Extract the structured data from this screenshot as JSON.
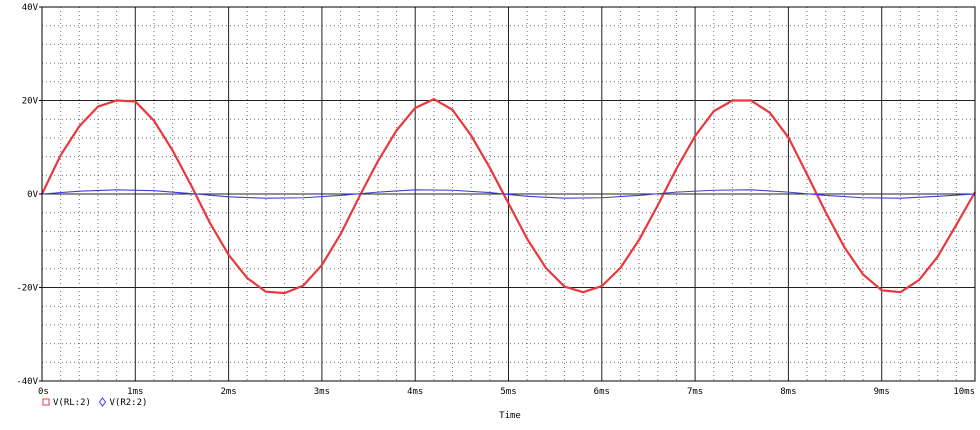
{
  "chart_data": {
    "type": "line",
    "xlabel": "Time",
    "ylabel": "",
    "xlim": [
      0,
      10
    ],
    "ylim": [
      -40,
      40
    ],
    "x_ticks": [
      0,
      1,
      2,
      3,
      4,
      5,
      6,
      7,
      8,
      9,
      10
    ],
    "x_tick_labels": [
      "0s",
      "1ms",
      "2ms",
      "3ms",
      "4ms",
      "5ms",
      "6ms",
      "7ms",
      "8ms",
      "9ms",
      "10ms"
    ],
    "y_ticks": [
      40,
      20,
      0,
      -20,
      -40
    ],
    "y_tick_labels": [
      "40V",
      "20V",
      "0V",
      "-20V",
      "-40V"
    ],
    "grid": true,
    "legend_position": "bottom-left",
    "series": [
      {
        "name": "V(RL:2)",
        "color": "#e8383d",
        "marker": "square",
        "x": [
          0,
          0.2,
          0.4,
          0.6,
          0.8,
          1.0,
          1.2,
          1.4,
          1.6,
          1.8,
          2.0,
          2.2,
          2.4,
          2.6,
          2.8,
          3.0,
          3.2,
          3.4,
          3.6,
          3.8,
          4.0,
          4.2,
          4.4,
          4.6,
          4.8,
          5.0,
          5.2,
          5.4,
          5.6,
          5.8,
          6.0,
          6.2,
          6.4,
          6.6,
          6.8,
          7.0,
          7.2,
          7.4,
          7.6,
          7.8,
          8.0,
          8.2,
          8.4,
          8.6,
          8.8,
          9.0,
          9.2,
          9.4,
          9.6,
          9.8,
          10.0
        ],
        "values": [
          0,
          8.3,
          14.5,
          18.7,
          20.0,
          19.8,
          15.7,
          9.3,
          1.8,
          -6.2,
          -13.0,
          -18.0,
          -20.9,
          -21.2,
          -19.6,
          -15.2,
          -8.6,
          -0.6,
          7.0,
          13.6,
          18.4,
          20.3,
          18.0,
          12.5,
          5.6,
          -2.0,
          -9.6,
          -15.8,
          -19.8,
          -21.0,
          -19.7,
          -15.8,
          -9.8,
          -2.4,
          5.4,
          12.4,
          17.7,
          20.0,
          20.0,
          17.4,
          12.1,
          4.2,
          -3.9,
          -11.4,
          -17.2,
          -20.6,
          -21.0,
          -18.4,
          -13.4,
          -6.6,
          0.4
        ]
      },
      {
        "name": "V(R2:2)",
        "color": "#4040d0",
        "marker": "diamond",
        "x": [
          0,
          0.4,
          0.8,
          1.2,
          1.6,
          2.0,
          2.4,
          2.8,
          3.2,
          3.6,
          4.0,
          4.4,
          4.8,
          5.2,
          5.6,
          6.0,
          6.4,
          6.8,
          7.2,
          7.6,
          8.0,
          8.4,
          8.8,
          9.2,
          9.6,
          10.0
        ],
        "values": [
          0,
          0.6,
          0.9,
          0.7,
          0.1,
          -0.6,
          -0.9,
          -0.8,
          -0.3,
          0.4,
          0.9,
          0.8,
          0.3,
          -0.5,
          -0.9,
          -0.8,
          -0.3,
          0.4,
          0.8,
          0.9,
          0.4,
          -0.3,
          -0.8,
          -0.9,
          -0.5,
          0
        ]
      }
    ]
  }
}
